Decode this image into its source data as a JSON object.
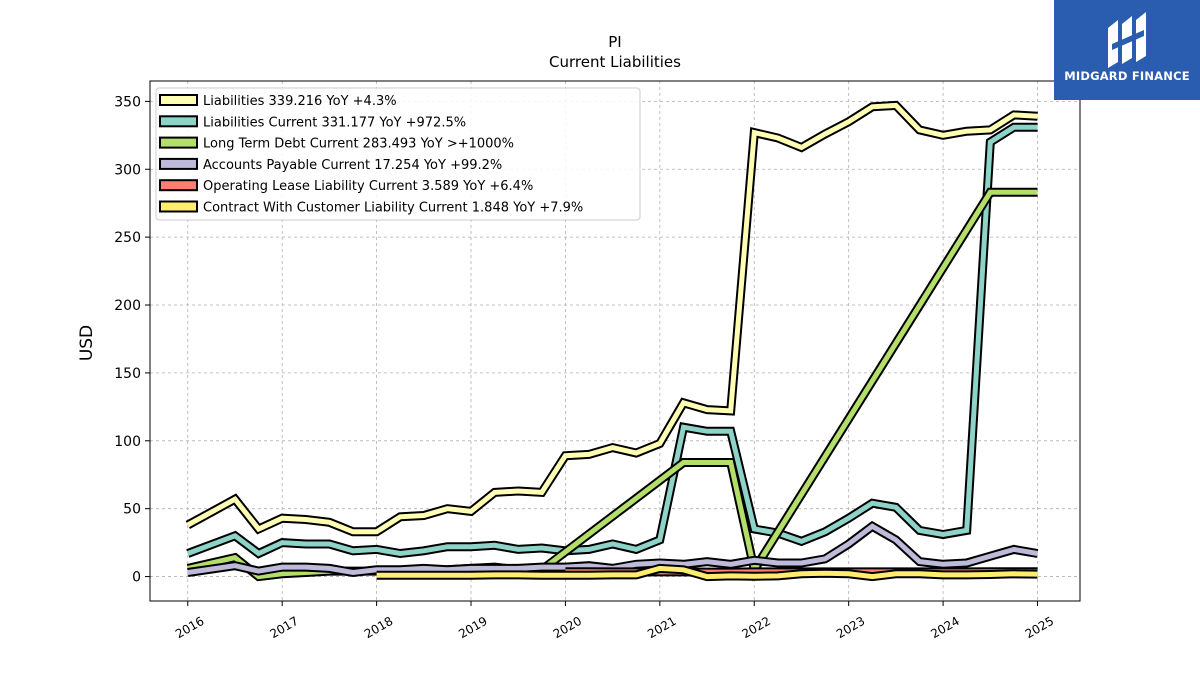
{
  "chart_data": {
    "type": "line",
    "title": "PI",
    "subtitle": "Current  Liabilities",
    "ylabel": "USD",
    "xlabel": "",
    "x_ticks": [
      "2016",
      "2017",
      "2018",
      "2019",
      "2020",
      "2021",
      "2022",
      "2023",
      "2024",
      "2025"
    ],
    "y_ticks": [
      0,
      50,
      100,
      150,
      200,
      250,
      300,
      350
    ],
    "ylim": [
      -18,
      365
    ],
    "xlim": [
      2015.6,
      2025.45
    ],
    "grid": true,
    "legend_placement": "top-left",
    "series": [
      {
        "name": "Liabilities  339.216 YoY +4.3%",
        "color": "#ffffb3",
        "points": [
          [
            2016.0,
            38
          ],
          [
            2016.5,
            57
          ],
          [
            2016.75,
            35
          ],
          [
            2017.0,
            43
          ],
          [
            2017.25,
            42
          ],
          [
            2017.5,
            40
          ],
          [
            2017.75,
            33
          ],
          [
            2018.0,
            33
          ],
          [
            2018.25,
            44
          ],
          [
            2018.5,
            45
          ],
          [
            2018.75,
            50
          ],
          [
            2019.0,
            48
          ],
          [
            2019.25,
            62
          ],
          [
            2019.5,
            63
          ],
          [
            2019.75,
            62
          ],
          [
            2020.0,
            89
          ],
          [
            2020.25,
            90
          ],
          [
            2020.5,
            95
          ],
          [
            2020.75,
            91
          ],
          [
            2021.0,
            98
          ],
          [
            2021.25,
            128
          ],
          [
            2021.5,
            123
          ],
          [
            2021.75,
            122
          ],
          [
            2022.0,
            327
          ],
          [
            2022.25,
            323
          ],
          [
            2022.5,
            316
          ],
          [
            2022.75,
            326
          ],
          [
            2023.0,
            335
          ],
          [
            2023.25,
            346
          ],
          [
            2023.5,
            347
          ],
          [
            2023.75,
            329
          ],
          [
            2024.0,
            325
          ],
          [
            2024.25,
            328
          ],
          [
            2024.5,
            329
          ],
          [
            2024.75,
            340
          ],
          [
            2025.0,
            339
          ]
        ]
      },
      {
        "name": "Liabilities Current  331.177 YoY +972.5%",
        "color": "#8dd3c7",
        "points": [
          [
            2016.0,
            17
          ],
          [
            2016.5,
            30
          ],
          [
            2016.75,
            17
          ],
          [
            2017.0,
            25
          ],
          [
            2017.25,
            24
          ],
          [
            2017.5,
            24
          ],
          [
            2017.75,
            19
          ],
          [
            2018.0,
            20
          ],
          [
            2018.25,
            17
          ],
          [
            2018.5,
            19
          ],
          [
            2018.75,
            22
          ],
          [
            2019.0,
            22
          ],
          [
            2019.25,
            23
          ],
          [
            2019.5,
            20
          ],
          [
            2019.75,
            21
          ],
          [
            2020.0,
            19
          ],
          [
            2020.25,
            20
          ],
          [
            2020.5,
            24
          ],
          [
            2020.75,
            20
          ],
          [
            2021.0,
            27
          ],
          [
            2021.25,
            110
          ],
          [
            2021.5,
            107
          ],
          [
            2021.75,
            107
          ],
          [
            2022.0,
            35
          ],
          [
            2022.25,
            32
          ],
          [
            2022.5,
            26
          ],
          [
            2022.75,
            33
          ],
          [
            2023.0,
            43
          ],
          [
            2023.25,
            54
          ],
          [
            2023.5,
            51
          ],
          [
            2023.75,
            34
          ],
          [
            2024.0,
            31
          ],
          [
            2024.25,
            34
          ],
          [
            2024.5,
            320
          ],
          [
            2024.75,
            331
          ],
          [
            2025.0,
            331
          ]
        ]
      },
      {
        "name": "Long Term Debt Current  283.493 YoY >+1000%",
        "color": "#b3de69",
        "points": [
          [
            2016.0,
            6
          ],
          [
            2016.5,
            14
          ],
          [
            2016.75,
            0
          ],
          [
            2017.0,
            2
          ],
          [
            2017.25,
            3
          ],
          [
            2017.5,
            4
          ],
          [
            2017.75,
            4
          ],
          [
            2018.0,
            4
          ],
          [
            2018.25,
            4
          ],
          [
            2018.5,
            4
          ],
          [
            2018.75,
            5
          ],
          [
            2019.0,
            6
          ],
          [
            2019.25,
            7
          ],
          [
            2019.5,
            5
          ],
          [
            2019.75,
            5
          ],
          [
            2021.25,
            84
          ],
          [
            2021.5,
            84
          ],
          [
            2021.75,
            84
          ],
          [
            2022.0,
            5
          ],
          [
            2024.5,
            283
          ],
          [
            2024.75,
            283
          ],
          [
            2025.0,
            283
          ]
        ]
      },
      {
        "name": "Accounts Payable Current  17.254 YoY +99.2%",
        "color": "#bebada",
        "points": [
          [
            2016.0,
            3
          ],
          [
            2016.5,
            8
          ],
          [
            2016.75,
            4
          ],
          [
            2017.0,
            7
          ],
          [
            2017.25,
            7
          ],
          [
            2017.5,
            6
          ],
          [
            2017.75,
            3
          ],
          [
            2018.0,
            5
          ],
          [
            2018.25,
            5
          ],
          [
            2018.5,
            6
          ],
          [
            2018.75,
            5
          ],
          [
            2019.0,
            6
          ],
          [
            2019.25,
            6
          ],
          [
            2019.5,
            6
          ],
          [
            2019.75,
            7
          ],
          [
            2020.0,
            7
          ],
          [
            2020.25,
            8
          ],
          [
            2020.5,
            6
          ],
          [
            2020.75,
            9
          ],
          [
            2021.0,
            10
          ],
          [
            2021.25,
            9
          ],
          [
            2021.5,
            11
          ],
          [
            2021.75,
            9
          ],
          [
            2022.0,
            12
          ],
          [
            2022.25,
            10
          ],
          [
            2022.5,
            10
          ],
          [
            2022.75,
            13
          ],
          [
            2023.0,
            24
          ],
          [
            2023.25,
            37
          ],
          [
            2023.5,
            27
          ],
          [
            2023.75,
            11
          ],
          [
            2024.0,
            9
          ],
          [
            2024.25,
            10
          ],
          [
            2024.5,
            15
          ],
          [
            2024.75,
            20
          ],
          [
            2025.0,
            17
          ]
        ]
      },
      {
        "name": "Operating Lease Liability Current  3.589 YoY +6.4%",
        "color": "#fb8072",
        "points": [
          [
            2020.0,
            3.5
          ],
          [
            2020.25,
            3.5
          ],
          [
            2020.5,
            3.4
          ],
          [
            2020.75,
            3.4
          ],
          [
            2021.0,
            3.4
          ],
          [
            2021.25,
            3.4
          ],
          [
            2021.5,
            3.3
          ],
          [
            2021.75,
            3.3
          ],
          [
            2022.0,
            3.4
          ],
          [
            2022.25,
            3.4
          ],
          [
            2022.5,
            3.4
          ],
          [
            2022.75,
            3.4
          ],
          [
            2023.0,
            3.4
          ],
          [
            2023.25,
            3.4
          ],
          [
            2023.5,
            3.4
          ],
          [
            2023.75,
            3.4
          ],
          [
            2024.0,
            3.4
          ],
          [
            2024.25,
            3.4
          ],
          [
            2024.5,
            3.5
          ],
          [
            2024.75,
            3.6
          ],
          [
            2025.0,
            3.6
          ]
        ]
      },
      {
        "name": "Contract With Customer Liability Current  1.848 YoY +7.9%",
        "color": "#ffed6f",
        "points": [
          [
            2018.0,
            1
          ],
          [
            2018.25,
            1
          ],
          [
            2018.5,
            1
          ],
          [
            2018.75,
            1
          ],
          [
            2019.0,
            1
          ],
          [
            2019.25,
            1.2
          ],
          [
            2019.5,
            1.2
          ],
          [
            2019.75,
            1
          ],
          [
            2020.0,
            1
          ],
          [
            2020.25,
            1
          ],
          [
            2020.5,
            1.2
          ],
          [
            2020.75,
            1.2
          ],
          [
            2021.0,
            6
          ],
          [
            2021.25,
            5
          ],
          [
            2021.5,
            0
          ],
          [
            2021.75,
            0.5
          ],
          [
            2022.0,
            0.3
          ],
          [
            2022.25,
            0.5
          ],
          [
            2022.5,
            2
          ],
          [
            2022.75,
            2.5
          ],
          [
            2023.0,
            2
          ],
          [
            2023.25,
            0
          ],
          [
            2023.5,
            2
          ],
          [
            2023.75,
            2
          ],
          [
            2024.0,
            1.2
          ],
          [
            2024.25,
            1.2
          ],
          [
            2024.5,
            1.5
          ],
          [
            2024.75,
            2
          ],
          [
            2025.0,
            1.8
          ]
        ]
      }
    ]
  },
  "logo": {
    "text": "MIDGARD FINANCE",
    "color": "#2a5db0"
  }
}
